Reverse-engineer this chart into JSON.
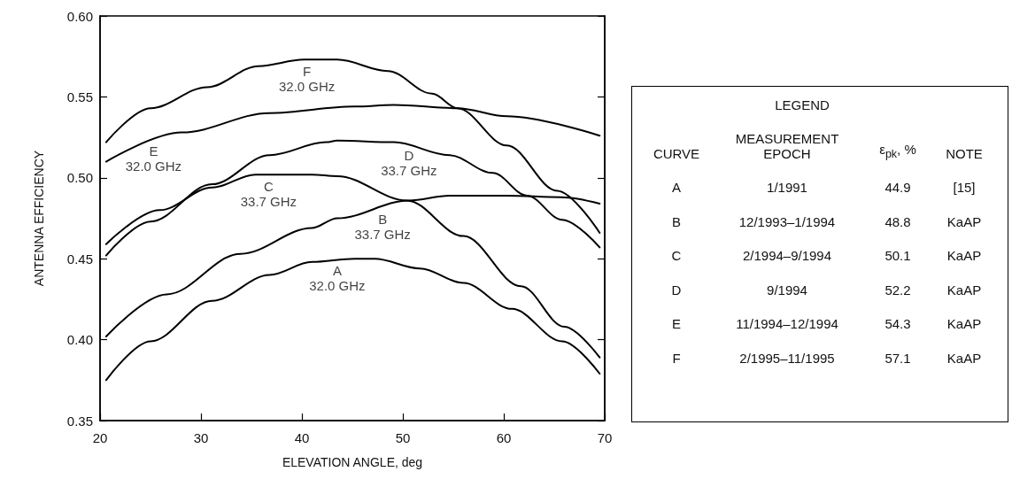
{
  "chart_data": [
    {
      "type": "line",
      "xlabel": "ELEVATION ANGLE, deg",
      "ylabel": "ANTENNA EFFICIENCY",
      "xlim": [
        20,
        70
      ],
      "xticks": [
        20,
        30,
        40,
        50,
        60,
        70
      ],
      "ylim": [
        0.35,
        0.6
      ],
      "yticks": [
        {
          "value": 0.35,
          "label": "0.35"
        },
        {
          "value": 0.4,
          "label": "0.40"
        },
        {
          "value": 0.45,
          "label": "0.45"
        },
        {
          "value": 0.5,
          "label": "0.50"
        },
        {
          "value": 0.55,
          "label": "0.55"
        },
        {
          "value": 0.6,
          "label": "0.60"
        }
      ],
      "grid": false,
      "marker": "none",
      "line_style": "solid",
      "series": [
        {
          "color": "#000000",
          "x": [
            20.6,
            25.0,
            31.1,
            36.8,
            41.0,
            45.2,
            47.2,
            51.7,
            56.0,
            60.8,
            65.8,
            69.5
          ],
          "values": [
            0.375,
            0.399,
            0.424,
            0.44,
            0.448,
            0.45,
            0.45,
            0.444,
            0.435,
            0.419,
            0.399,
            0.379
          ]
        },
        {
          "color": "#000000",
          "x": [
            20.6,
            26.6,
            33.9,
            41.0,
            43.5,
            50.6,
            54.6,
            60.3,
            65.7,
            69.5
          ],
          "values": [
            0.402,
            0.428,
            0.453,
            0.469,
            0.475,
            0.486,
            0.489,
            0.489,
            0.488,
            0.484
          ]
        },
        {
          "color": "#000000",
          "x": [
            20.6,
            25.9,
            31.1,
            35.4,
            41.0,
            43.5,
            50.4,
            56.0,
            61.7,
            66.0,
            69.5
          ],
          "values": [
            0.459,
            0.48,
            0.494,
            0.502,
            0.502,
            0.501,
            0.486,
            0.464,
            0.433,
            0.408,
            0.389
          ]
        },
        {
          "color": "#000000",
          "x": [
            20.6,
            25.0,
            31.1,
            36.8,
            42.4,
            43.5,
            49.1,
            54.6,
            58.9,
            62.3,
            65.8,
            69.5
          ],
          "values": [
            0.452,
            0.473,
            0.496,
            0.514,
            0.522,
            0.523,
            0.522,
            0.514,
            0.503,
            0.489,
            0.474,
            0.457
          ]
        },
        {
          "color": "#000000",
          "x": [
            20.6,
            28.1,
            36.8,
            45.2,
            49.1,
            55.4,
            60.3,
            69.5
          ],
          "values": [
            0.51,
            0.528,
            0.54,
            0.544,
            0.545,
            0.543,
            0.538,
            0.526
          ]
        },
        {
          "color": "#000000",
          "x": [
            20.6,
            25.0,
            30.6,
            35.7,
            40.2,
            43.5,
            48.5,
            52.9,
            55.4,
            60.3,
            65.3,
            69.5
          ],
          "values": [
            0.522,
            0.543,
            0.556,
            0.569,
            0.573,
            0.573,
            0.566,
            0.552,
            0.543,
            0.52,
            0.492,
            0.466
          ]
        }
      ],
      "annotations": [
        {
          "text": "A\n32.0 GHz",
          "x": 43.5,
          "y": 0.45
        },
        {
          "text": "B\n33.7 GHz",
          "x": 48.0,
          "y": 0.482
        },
        {
          "text": "C\n33.7 GHz",
          "x": 36.7,
          "y": 0.502
        },
        {
          "text": "D\n33.7 GHz",
          "x": 50.6,
          "y": 0.521
        },
        {
          "text": "E\n32.0 GHz",
          "x": 25.3,
          "y": 0.524
        },
        {
          "text": "F\n32.0 GHz",
          "x": 40.5,
          "y": 0.573
        }
      ]
    },
    {
      "type": "other",
      "title": "LEGEND",
      "annotations": [
        "CURVE",
        "MEASUREMENT\nEPOCH",
        "ε$_{pk}$, %",
        "NOTE",
        "A",
        "1/1991",
        "44.9",
        "[15]",
        "B",
        "12/1993–1/1994",
        "48.8",
        "KaAP",
        "C",
        "2/1994–9/1994",
        "50.1",
        "KaAP",
        "D",
        "9/1994",
        "52.2",
        "KaAP",
        "E",
        "11/1994–12/1994",
        "54.3",
        "KaAP",
        "F",
        "2/1995–11/1995",
        "57.1",
        "KaAP"
      ]
    }
  ]
}
